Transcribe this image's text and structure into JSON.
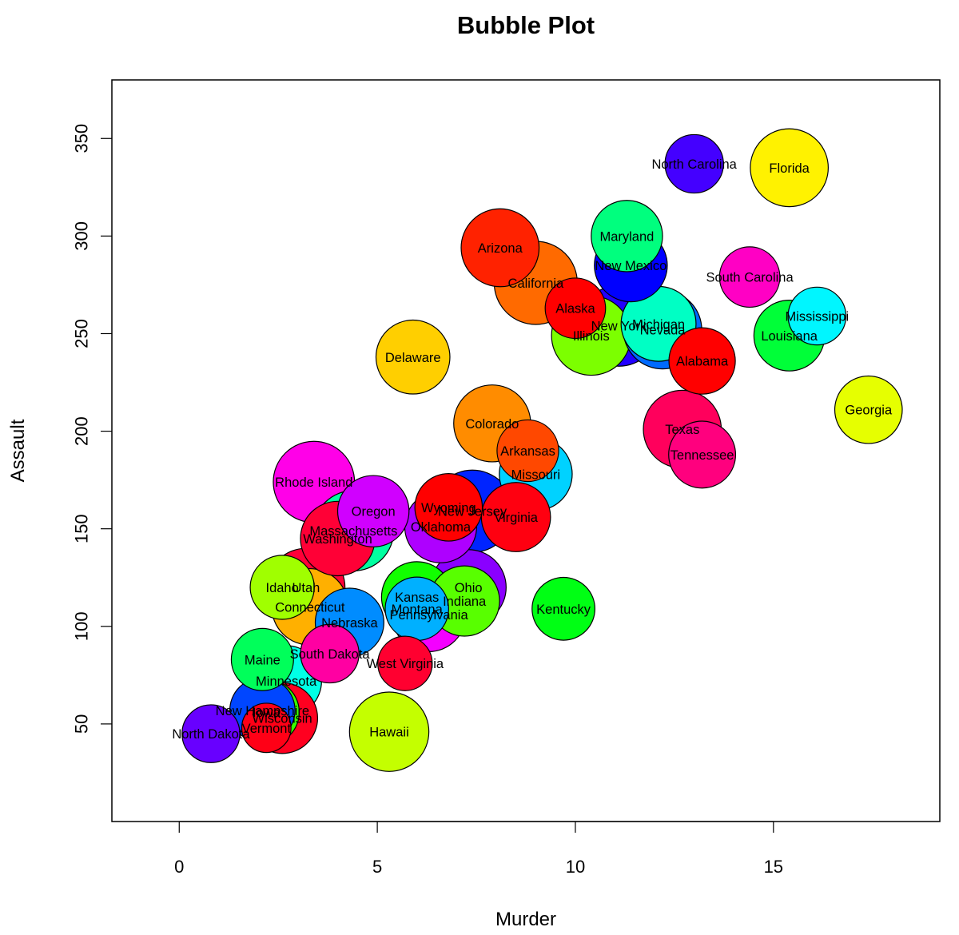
{
  "chart_data": {
    "type": "scatter",
    "title": "Bubble Plot",
    "xlabel": "Murder",
    "ylabel": "Assault",
    "xlim": [
      -1.7,
      19.2
    ],
    "ylim": [
      0,
      380
    ],
    "x_ticks": [
      0,
      5,
      10,
      15
    ],
    "y_ticks": [
      50,
      100,
      150,
      200,
      250,
      300,
      350
    ],
    "grid": false,
    "legend": "none",
    "points": [
      {
        "label": "Alabama",
        "x": 13.2,
        "y": 236,
        "size": 58,
        "color": "#ff0000"
      },
      {
        "label": "Alaska",
        "x": 10.0,
        "y": 263,
        "size": 48,
        "color": "#ff0000"
      },
      {
        "label": "Arizona",
        "x": 8.1,
        "y": 294,
        "size": 80,
        "color": "#ff2200"
      },
      {
        "label": "Arkansas",
        "x": 8.8,
        "y": 190,
        "size": 50,
        "color": "#ff4800"
      },
      {
        "label": "California",
        "x": 9.0,
        "y": 276,
        "size": 91,
        "color": "#ff6a00"
      },
      {
        "label": "Colorado",
        "x": 7.9,
        "y": 204,
        "size": 78,
        "color": "#ff8c00"
      },
      {
        "label": "Connecticut",
        "x": 3.3,
        "y": 110,
        "size": 77,
        "color": "#ffb000"
      },
      {
        "label": "Delaware",
        "x": 5.9,
        "y": 238,
        "size": 72,
        "color": "#ffcf00"
      },
      {
        "label": "Florida",
        "x": 15.4,
        "y": 335,
        "size": 80,
        "color": "#fff200"
      },
      {
        "label": "Georgia",
        "x": 17.4,
        "y": 211,
        "size": 60,
        "color": "#e6ff00"
      },
      {
        "label": "Hawaii",
        "x": 5.3,
        "y": 46,
        "size": 83,
        "color": "#c4ff00"
      },
      {
        "label": "Idaho",
        "x": 2.6,
        "y": 120,
        "size": 54,
        "color": "#a0ff00"
      },
      {
        "label": "Illinois",
        "x": 10.4,
        "y": 249,
        "size": 83,
        "color": "#7cff00"
      },
      {
        "label": "Indiana",
        "x": 7.2,
        "y": 113,
        "size": 65,
        "color": "#58ff00"
      },
      {
        "label": "Iowa",
        "x": 2.2,
        "y": 56,
        "size": 57,
        "color": "#36ff00"
      },
      {
        "label": "Kansas",
        "x": 6.0,
        "y": 115,
        "size": 66,
        "color": "#12ff00"
      },
      {
        "label": "Kentucky",
        "x": 9.7,
        "y": 109,
        "size": 52,
        "color": "#00ff14"
      },
      {
        "label": "Louisiana",
        "x": 15.4,
        "y": 249,
        "size": 66,
        "color": "#00ff38"
      },
      {
        "label": "Maine",
        "x": 2.1,
        "y": 83,
        "size": 51,
        "color": "#00ff5a"
      },
      {
        "label": "Maryland",
        "x": 11.3,
        "y": 300,
        "size": 67,
        "color": "#00ff7e"
      },
      {
        "label": "Massachusetts",
        "x": 4.4,
        "y": 149,
        "size": 85,
        "color": "#00ffa0"
      },
      {
        "label": "Michigan",
        "x": 12.1,
        "y": 255,
        "size": 74,
        "color": "#00ffc4"
      },
      {
        "label": "Minnesota",
        "x": 2.7,
        "y": 72,
        "size": 66,
        "color": "#00ffe6"
      },
      {
        "label": "Mississippi",
        "x": 16.1,
        "y": 259,
        "size": 44,
        "color": "#00f6ff"
      },
      {
        "label": "Missouri",
        "x": 9.0,
        "y": 178,
        "size": 70,
        "color": "#00d2ff"
      },
      {
        "label": "Montana",
        "x": 6.0,
        "y": 109,
        "size": 53,
        "color": "#00b0ff"
      },
      {
        "label": "Nebraska",
        "x": 4.3,
        "y": 102,
        "size": 62,
        "color": "#008cff"
      },
      {
        "label": "Nevada",
        "x": 12.2,
        "y": 252,
        "size": 81,
        "color": "#006aff"
      },
      {
        "label": "New Hampshire",
        "x": 2.1,
        "y": 57,
        "size": 56,
        "color": "#0046ff"
      },
      {
        "label": "New Jersey",
        "x": 7.4,
        "y": 159,
        "size": 89,
        "color": "#0024ff"
      },
      {
        "label": "New Mexico",
        "x": 11.4,
        "y": 285,
        "size": 70,
        "color": "#0000ff"
      },
      {
        "label": "New York",
        "x": 11.1,
        "y": 254,
        "size": 86,
        "color": "#2200ff"
      },
      {
        "label": "North Carolina",
        "x": 13.0,
        "y": 337,
        "size": 45,
        "color": "#4400ff"
      },
      {
        "label": "North Dakota",
        "x": 0.8,
        "y": 45,
        "size": 44,
        "color": "#6800ff"
      },
      {
        "label": "Ohio",
        "x": 7.3,
        "y": 120,
        "size": 75,
        "color": "#8a00ff"
      },
      {
        "label": "Oklahoma",
        "x": 6.6,
        "y": 151,
        "size": 68,
        "color": "#ae00ff"
      },
      {
        "label": "Oregon",
        "x": 4.9,
        "y": 159,
        "size": 67,
        "color": "#d000ff"
      },
      {
        "label": "Pennsylvania",
        "x": 6.3,
        "y": 106,
        "size": 72,
        "color": "#f400ff"
      },
      {
        "label": "Rhode Island",
        "x": 3.4,
        "y": 174,
        "size": 87,
        "color": "#ff00e8"
      },
      {
        "label": "South Carolina",
        "x": 14.4,
        "y": 279,
        "size": 48,
        "color": "#ff00c4"
      },
      {
        "label": "South Dakota",
        "x": 3.8,
        "y": 86,
        "size": 45,
        "color": "#ff00a2"
      },
      {
        "label": "Tennessee",
        "x": 13.2,
        "y": 188,
        "size": 59,
        "color": "#ff007e"
      },
      {
        "label": "Texas",
        "x": 12.7,
        "y": 201,
        "size": 80,
        "color": "#ff005c"
      },
      {
        "label": "Utah",
        "x": 3.2,
        "y": 120,
        "size": 80,
        "color": "#ff0038"
      },
      {
        "label": "Vermont",
        "x": 2.2,
        "y": 48,
        "size": 32,
        "color": "#ff0016"
      },
      {
        "label": "Virginia",
        "x": 8.5,
        "y": 156,
        "size": 63,
        "color": "#ff0010"
      },
      {
        "label": "Washington",
        "x": 4.0,
        "y": 145,
        "size": 73,
        "color": "#ff0036"
      },
      {
        "label": "West Virginia",
        "x": 5.7,
        "y": 81,
        "size": 39,
        "color": "#ff0030"
      },
      {
        "label": "Wisconsin",
        "x": 2.6,
        "y": 53,
        "size": 66,
        "color": "#ff0020"
      },
      {
        "label": "Wyoming",
        "x": 6.8,
        "y": 161,
        "size": 60,
        "color": "#ff0000"
      }
    ]
  }
}
